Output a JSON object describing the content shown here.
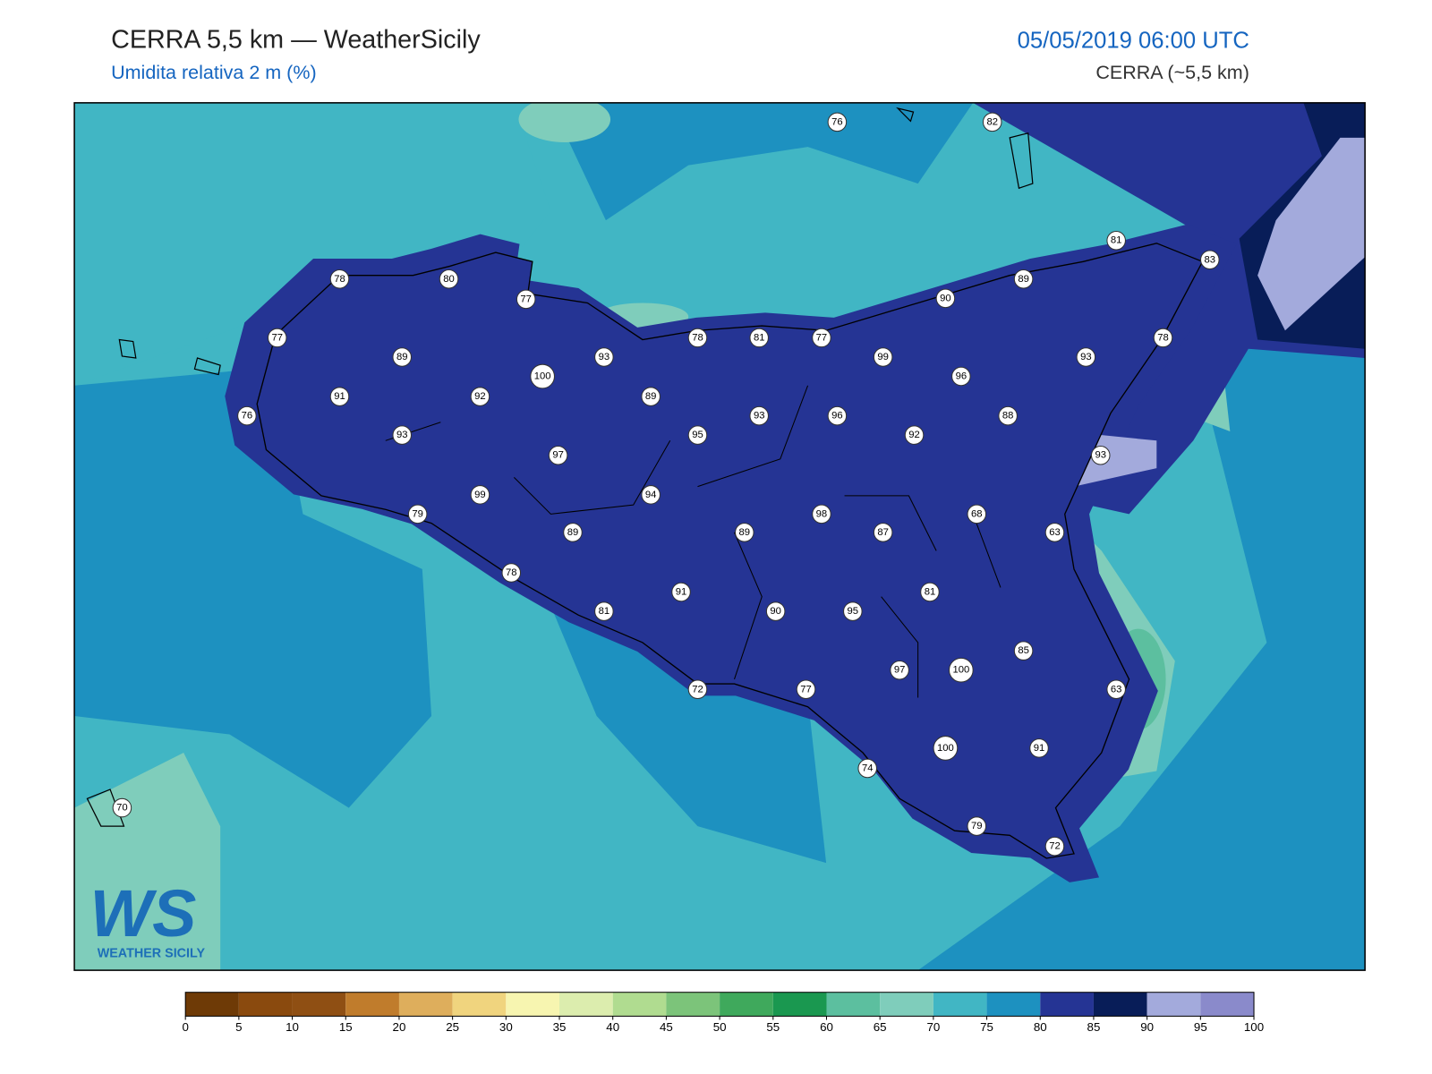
{
  "header": {
    "title": "CERRA 5,5 km — WeatherSicily",
    "subtitle": "Umidita relativa 2 m (%)",
    "datetime": "05/05/2019 06:00 UTC",
    "source": "CERRA (~5,5 km)"
  },
  "logo": {
    "mark": "WS",
    "text": "WEATHER SICILY"
  },
  "stations": [
    76,
    82,
    81,
    83,
    78,
    80,
    77,
    77,
    78,
    81,
    89,
    90,
    77,
    89,
    91,
    92,
    100,
    93,
    89,
    99,
    96,
    93,
    76,
    93,
    97,
    95,
    93,
    96,
    92,
    88,
    93,
    78,
    99,
    94,
    89,
    98,
    87,
    68,
    63,
    79,
    89,
    78,
    81,
    91,
    90,
    95,
    81,
    100,
    97,
    85,
    72,
    77,
    63,
    74,
    100,
    91,
    79,
    72,
    70
  ],
  "colorbar": {
    "ticks": [
      0,
      5,
      10,
      15,
      20,
      25,
      30,
      35,
      40,
      45,
      50,
      55,
      60,
      65,
      70,
      75,
      80,
      85,
      90,
      95,
      100
    ],
    "colors": [
      "#6e3a06",
      "#8a4a0e",
      "#8f4f13",
      "#c07c2c",
      "#deae5c",
      "#f0d47e",
      "#f7f5b0",
      "#dcedae",
      "#b0dc90",
      "#7cc47a",
      "#3fa95c",
      "#1a9850",
      "#5cbf9f",
      "#7fcdbb",
      "#41b6c4",
      "#1d91c0",
      "#253494",
      "#081d58",
      "#a3aadc",
      "#8a8acb"
    ]
  }
}
